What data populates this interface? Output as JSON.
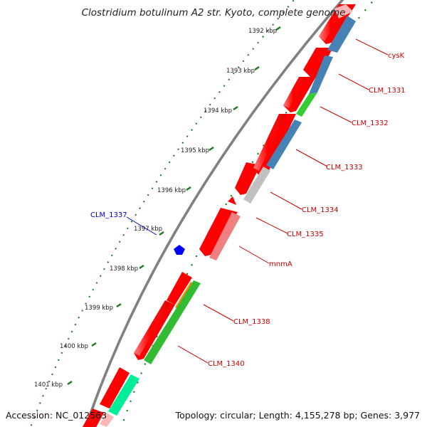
{
  "title": "Clostridium botulinum A2 str. Kyoto, complete genome",
  "footer": {
    "accession": "Accession: NC_012563",
    "summary": "Topology: circular; Length: 4,155,278 bp; Genes: 3,977"
  },
  "colors": {
    "backbone": "#808080",
    "ticks": "#1a7a1a",
    "cds": "#ff0000",
    "label_text": "#cc0000",
    "highlight_label": "#0000cc"
  },
  "scale": {
    "unit": "kbp",
    "ticks": [
      {
        "value": 1392,
        "label": "1392 kbp"
      },
      {
        "value": 1393,
        "label": "1393 kbp"
      },
      {
        "value": 1394,
        "label": "1394 kbp"
      },
      {
        "value": 1395,
        "label": "1395 kbp"
      },
      {
        "value": 1396,
        "label": "1396 kbp"
      },
      {
        "value": 1397,
        "label": "1397 kbp"
      },
      {
        "value": 1398,
        "label": "1398 kbp"
      },
      {
        "value": 1399,
        "label": "1399 kbp"
      },
      {
        "value": 1400,
        "label": "1400 kbp"
      },
      {
        "value": 1401,
        "label": "1401 kbp"
      }
    ]
  },
  "genes": [
    {
      "name": "cysK",
      "color": "#4682b4"
    },
    {
      "name": "CLM_1331",
      "color": "#4682b4"
    },
    {
      "name": "CLM_1332",
      "color": "#33cc33"
    },
    {
      "name": "CLM_1333",
      "color": "#4682b4"
    },
    {
      "name": "CLM_1334",
      "color": "#c0c0c0"
    },
    {
      "name": "CLM_1335",
      "color": "#ff0000"
    },
    {
      "name": "mnmA",
      "color": "#f08080"
    },
    {
      "name": "CLM_1337",
      "color": "#0000ff"
    },
    {
      "name": "CLM_1338",
      "color": "#ff8c00"
    },
    {
      "name": "CLM_1340",
      "color": "#33bb33"
    }
  ]
}
